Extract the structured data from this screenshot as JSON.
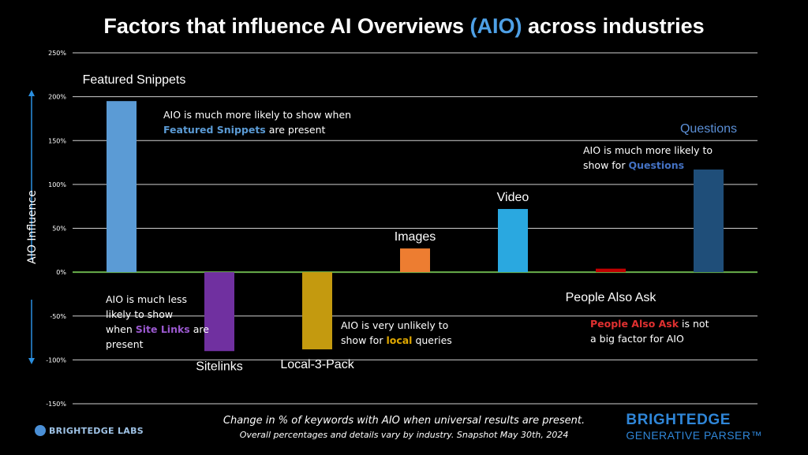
{
  "title": {
    "pre": "Factors that influence AI Overviews ",
    "highlight": "(AIO)",
    "post": " across industries"
  },
  "chart_data": {
    "type": "bar",
    "title": "Factors that influence AI Overviews (AIO) across industries",
    "ylabel": "AIO Influence",
    "xlabel": "",
    "ylim": [
      -150,
      250
    ],
    "yticks": [
      250,
      200,
      150,
      100,
      50,
      0,
      -50,
      -100,
      -150
    ],
    "ytick_labels": [
      "250%",
      "200%",
      "150%",
      "100%",
      "50%",
      "0%",
      "-50%",
      "-100%",
      "-150%"
    ],
    "grid": true,
    "categories": [
      "Featured Snippets",
      "Sitelinks",
      "Local-3-Pack",
      "Images",
      "Video",
      "People Also Ask",
      "Questions"
    ],
    "values": [
      195,
      -90,
      -88,
      27,
      72,
      4,
      117
    ],
    "colors": [
      "#5b9bd5",
      "#7030a0",
      "#c49a0f",
      "#ed7d31",
      "#2aa8e0",
      "#c00000",
      "#1f4e79"
    ]
  },
  "annotations": {
    "featured": {
      "l1": "AIO is much more likely to show when",
      "hl": "Featured Snippets",
      "rest": " are present"
    },
    "questions": {
      "l1": "AIO is much more likely to",
      "pre": "show for ",
      "hl": "Questions"
    },
    "sitelinks": {
      "l1": "AIO is much less",
      "l2": "likely  to show",
      "pre": "when ",
      "hl": "Site Links",
      "post": " are",
      "l4": "present"
    },
    "local": {
      "l1": "AIO is very unlikely to",
      "pre": "show for ",
      "hl": "local",
      "post": " queries"
    },
    "paa": {
      "hl": "People Also Ask",
      "post": " is not",
      "l2": "a big factor for AIO"
    }
  },
  "footer": {
    "line1": "Change in % of keywords with AIO when universal results are present.",
    "line2": "Overall percentages and details vary by industry. Snapshot May 30th, 2024"
  },
  "logos": {
    "left": "BRIGHTEDGE LABS",
    "right_top": "BRIGHTEDGE",
    "right_bottom": "GENERATIVE PARSER™"
  },
  "colors": {
    "background": "#000000",
    "zero_line": "#6ab04c",
    "title_highlight": "#4ea0e6",
    "featured_hl": "#5b9bd5",
    "questions_hl": "#4472c4",
    "sitelinks_hl": "#9b59d0",
    "local_hl": "#e0a800",
    "paa_hl": "#e03030"
  }
}
